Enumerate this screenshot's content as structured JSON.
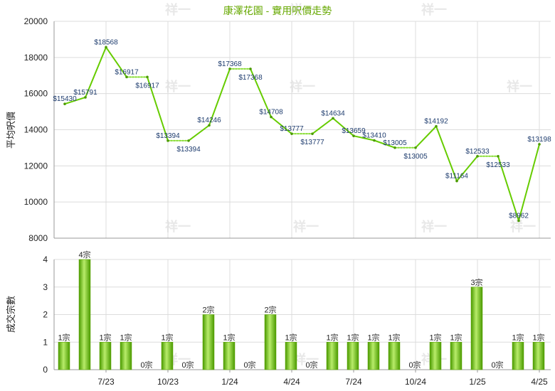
{
  "chart_data": [
    {
      "type": "line",
      "title": "康澤花園 - 實用呎價走勢",
      "ylabel": "平均呎價",
      "ylim": [
        8000,
        20000
      ],
      "yticks": [
        8000,
        10000,
        12000,
        14000,
        16000,
        18000,
        20000
      ],
      "grid": true,
      "color": "#66cc00",
      "values": [
        15430,
        15791,
        18568,
        16917,
        16917,
        13394,
        13394,
        14246,
        17368,
        17368,
        14708,
        13777,
        13777,
        14634,
        13659,
        13410,
        13005,
        13005,
        14192,
        11164,
        12533,
        12533,
        8962,
        13198
      ],
      "data_labels": [
        "$15430",
        "$15791",
        "$18568",
        "$16917",
        "$16917",
        "$13394",
        "$13394",
        "$14246",
        "$17368",
        "$17368",
        "$14708",
        "$13777",
        "$13777",
        "$14634",
        "$13659",
        "$13410",
        "$13005",
        "$13005",
        "$14192",
        "$11164",
        "$12533",
        "$12533",
        "$8962",
        "$13198"
      ],
      "carried_forward": [
        false,
        false,
        false,
        false,
        true,
        false,
        true,
        false,
        false,
        true,
        false,
        false,
        true,
        false,
        false,
        false,
        false,
        true,
        false,
        false,
        false,
        true,
        false,
        false
      ]
    },
    {
      "type": "bar",
      "ylabel": "成交宗數",
      "ylim": [
        0,
        4
      ],
      "yticks": [
        0,
        1,
        2,
        3,
        4
      ],
      "grid": true,
      "color": "#66cc00",
      "values": [
        1,
        4,
        1,
        1,
        0,
        1,
        0,
        2,
        1,
        0,
        2,
        1,
        0,
        1,
        1,
        1,
        1,
        0,
        1,
        1,
        3,
        0,
        1,
        1
      ],
      "data_labels": [
        "1宗",
        "4宗",
        "1宗",
        "1宗",
        "0宗",
        "1宗",
        "0宗",
        "2宗",
        "1宗",
        "0宗",
        "2宗",
        "1宗",
        "0宗",
        "1宗",
        "1宗",
        "1宗",
        "1宗",
        "0宗",
        "1宗",
        "1宗",
        "3宗",
        "0宗",
        "1宗",
        "1宗"
      ]
    }
  ],
  "x_labels": [
    {
      "index": 2,
      "label": "7/23"
    },
    {
      "index": 5,
      "label": "10/23"
    },
    {
      "index": 8,
      "label": "1/24"
    },
    {
      "index": 11,
      "label": "4/24"
    },
    {
      "index": 14,
      "label": "7/24"
    },
    {
      "index": 17,
      "label": "10/24"
    },
    {
      "index": 20,
      "label": "1/25"
    },
    {
      "index": 23,
      "label": "4/25"
    }
  ],
  "watermark": "祥一"
}
